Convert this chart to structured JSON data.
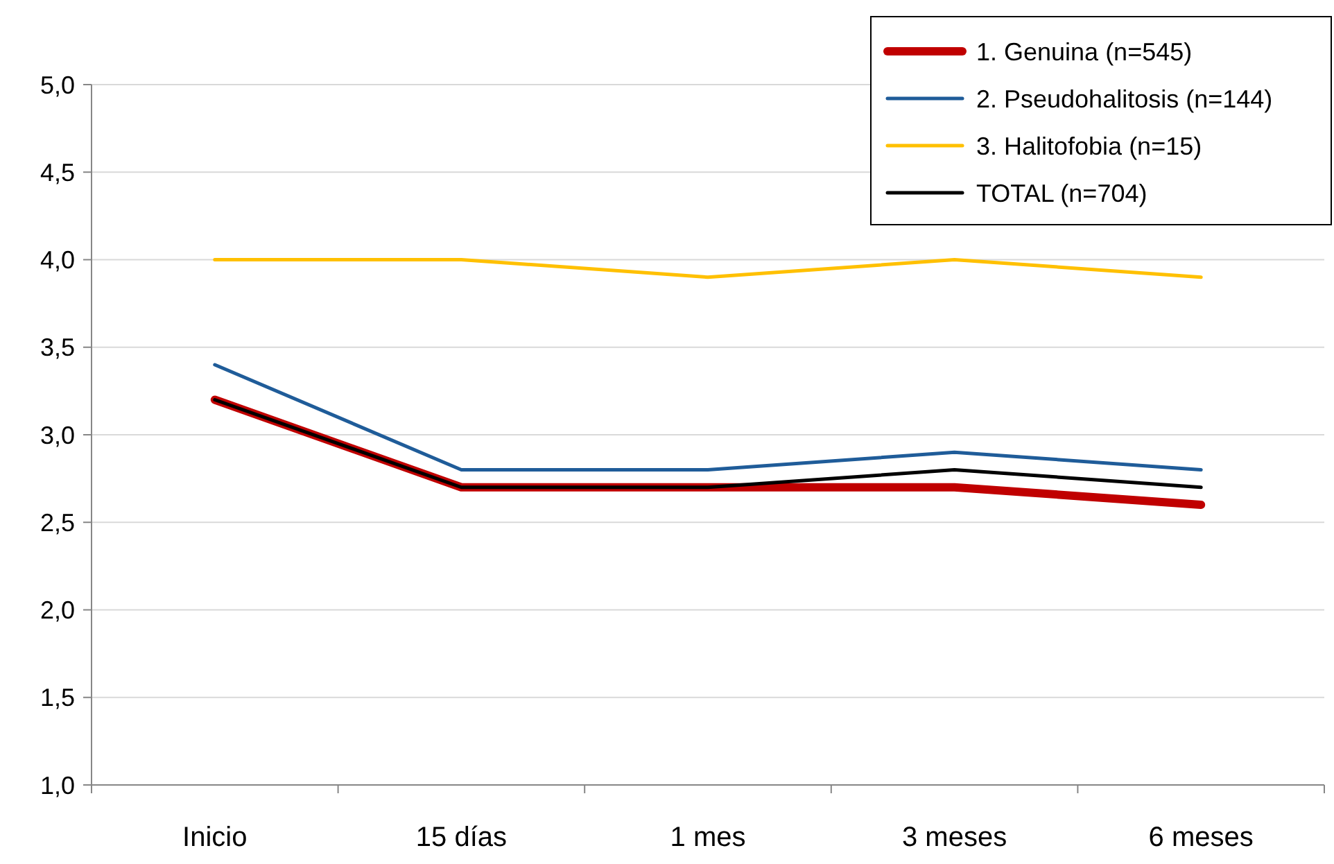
{
  "chart_data": {
    "type": "line",
    "categories": [
      "Inicio",
      "15 días",
      "1 mes",
      "3 meses",
      "6 meses"
    ],
    "series": [
      {
        "name": "1. Genuina (n=545)",
        "color": "#c00000",
        "values": [
          3.2,
          2.7,
          2.7,
          2.7,
          2.6
        ]
      },
      {
        "name": "2. Pseudohalitosis (n=144)",
        "color": "#1f5c99",
        "values": [
          3.4,
          2.8,
          2.8,
          2.9,
          2.8
        ]
      },
      {
        "name": "3. Halitofobia  (n=15)",
        "color": "#ffc000",
        "values": [
          4.0,
          4.0,
          3.9,
          4.0,
          3.9
        ]
      },
      {
        "name": "TOTAL (n=704)",
        "color": "#000000",
        "values": [
          3.2,
          2.7,
          2.7,
          2.8,
          2.7
        ]
      }
    ],
    "ylim": [
      1,
      5
    ],
    "yticks": [
      {
        "value": 1,
        "label": "1,0"
      },
      {
        "value": 1.5,
        "label": "1,5"
      },
      {
        "value": 2,
        "label": "2,0"
      },
      {
        "value": 2.5,
        "label": "2,5"
      },
      {
        "value": 3,
        "label": "3,0"
      },
      {
        "value": 3.5,
        "label": "3,5"
      },
      {
        "value": 4,
        "label": "4,0"
      },
      {
        "value": 4.5,
        "label": "4,5"
      },
      {
        "value": 5,
        "label": "5,0"
      }
    ],
    "grid": "y",
    "legend": "top right",
    "marker": "none",
    "line_style": "solid"
  }
}
